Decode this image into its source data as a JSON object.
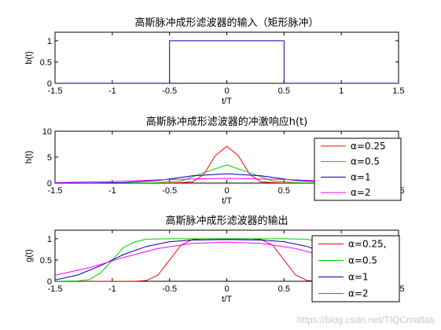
{
  "watermark": "https://blog.csdn.net/TIQCmatlab",
  "colors": {
    "red": "#ff0000",
    "green": "#00cc00",
    "blue": "#0000aa",
    "magenta": "#ff00ff"
  },
  "chart_data": [
    {
      "type": "line",
      "title": "高斯脉冲成形滤波器的输入（矩形脉冲）",
      "xlabel": "t/T",
      "ylabel": "b(t)",
      "xlim": [
        -1.5,
        1.5
      ],
      "ylim": [
        0,
        1.2
      ],
      "xticks": [
        "-1.5",
        "-1",
        "-0.5",
        "0",
        "0.5",
        "1",
        "1.5"
      ],
      "yticks": [
        "0",
        "0.5",
        "1"
      ],
      "series": [
        {
          "color": "#0000aa",
          "x": [
            -1.5,
            -0.5,
            -0.5,
            0.5,
            0.5,
            1.5
          ],
          "y": [
            0,
            0,
            1,
            1,
            0,
            0
          ]
        }
      ]
    },
    {
      "type": "line",
      "title": "高斯脉冲成形滤波器的冲激响应h(t)",
      "xlabel": "t/T",
      "ylabel": "h(t)",
      "xlim": [
        -1.5,
        1.5
      ],
      "ylim": [
        0,
        10
      ],
      "xticks": [
        "-1.5",
        "-1",
        "-0.5",
        "0",
        "0.5",
        "1",
        "1.5"
      ],
      "yticks": [
        "0",
        "5",
        "10"
      ],
      "legend": [
        "α=0.25",
        "α=0.5",
        "α=1",
        "α=2"
      ],
      "series": [
        {
          "name": "α=0.25",
          "color": "#ff0000",
          "x": [
            -1.5,
            -0.5,
            -0.3,
            -0.2,
            -0.1,
            0,
            0.1,
            0.2,
            0.3,
            0.5,
            1.5
          ],
          "y": [
            0,
            0,
            0.2,
            1.7,
            5.3,
            7.1,
            5.3,
            1.7,
            0.2,
            0,
            0
          ]
        },
        {
          "name": "α=0.5",
          "color": "#00cc00",
          "x": [
            -1.5,
            -0.8,
            -0.6,
            -0.4,
            -0.2,
            0,
            0.2,
            0.4,
            0.6,
            0.8,
            1.5
          ],
          "y": [
            0,
            0,
            0.1,
            0.4,
            2.0,
            3.5,
            2.0,
            0.4,
            0.1,
            0,
            0
          ]
        },
        {
          "name": "α=1",
          "color": "#0000aa",
          "x": [
            -1.5,
            -1.2,
            -0.9,
            -0.6,
            -0.3,
            0,
            0.3,
            0.6,
            0.9,
            1.2,
            1.5
          ],
          "y": [
            0,
            0,
            0.1,
            0.5,
            1.4,
            1.8,
            1.4,
            0.5,
            0.1,
            0,
            0
          ]
        },
        {
          "name": "α=2",
          "color": "#ff00ff",
          "x": [
            -1.5,
            -1.0,
            -0.5,
            0,
            0.5,
            1.0,
            1.5
          ],
          "y": [
            0.1,
            0.3,
            0.7,
            0.9,
            0.7,
            0.3,
            0.1
          ]
        }
      ]
    },
    {
      "type": "line",
      "title": "高斯脉冲成形滤波器的输出",
      "xlabel": "t/T",
      "ylabel": "g(t)",
      "xlim": [
        -1.5,
        1.5
      ],
      "ylim": [
        0,
        1.2
      ],
      "xticks": [
        "-1.5",
        "-1",
        "-0.5",
        "0",
        "0.5",
        "1",
        "1.5"
      ],
      "yticks": [
        "0",
        "0.5",
        "1"
      ],
      "legend": [
        "α=0.25,",
        "α=0.5",
        "α=1",
        "α=2"
      ],
      "series": [
        {
          "name": "α=0.25,",
          "color": "#ff0000",
          "x": [
            -1.5,
            -0.8,
            -0.7,
            -0.6,
            -0.5,
            -0.4,
            -0.3,
            -0.2,
            0,
            0.2,
            0.3,
            0.4,
            0.5,
            0.6,
            0.7,
            0.8,
            1.5
          ],
          "y": [
            0,
            0,
            0.02,
            0.15,
            0.5,
            0.85,
            0.98,
            1,
            1,
            1,
            0.98,
            0.85,
            0.5,
            0.15,
            0.02,
            0,
            0
          ]
        },
        {
          "name": "α=0.5",
          "color": "#00cc00",
          "x": [
            -1.5,
            -1.3,
            -1.2,
            -1.1,
            -1.0,
            -0.9,
            -0.8,
            -0.7,
            -0.5,
            0,
            0.5,
            0.7,
            0.8,
            0.9,
            1.0,
            1.1,
            1.2,
            1.3,
            1.5
          ],
          "y": [
            0,
            0.01,
            0.04,
            0.2,
            0.5,
            0.8,
            0.93,
            0.99,
            1,
            1,
            1,
            0.99,
            0.93,
            0.8,
            0.5,
            0.2,
            0.04,
            0.01,
            0
          ]
        },
        {
          "name": "α=1",
          "color": "#0000aa",
          "x": [
            -1.5,
            -1.3,
            -1.1,
            -0.9,
            -0.7,
            -0.5,
            -0.3,
            0,
            0.3,
            0.5,
            0.7,
            0.9,
            1.1,
            1.3,
            1.5
          ],
          "y": [
            0.03,
            0.15,
            0.37,
            0.63,
            0.82,
            0.93,
            0.97,
            0.98,
            0.97,
            0.93,
            0.82,
            0.63,
            0.37,
            0.15,
            0.03
          ]
        },
        {
          "name": "α=2",
          "color": "#ff00ff",
          "x": [
            -1.5,
            -1.2,
            -0.9,
            -0.6,
            -0.3,
            0,
            0.3,
            0.6,
            0.9,
            1.2,
            1.5
          ],
          "y": [
            0.14,
            0.32,
            0.56,
            0.77,
            0.89,
            0.92,
            0.89,
            0.77,
            0.56,
            0.32,
            0.14
          ]
        }
      ]
    }
  ]
}
